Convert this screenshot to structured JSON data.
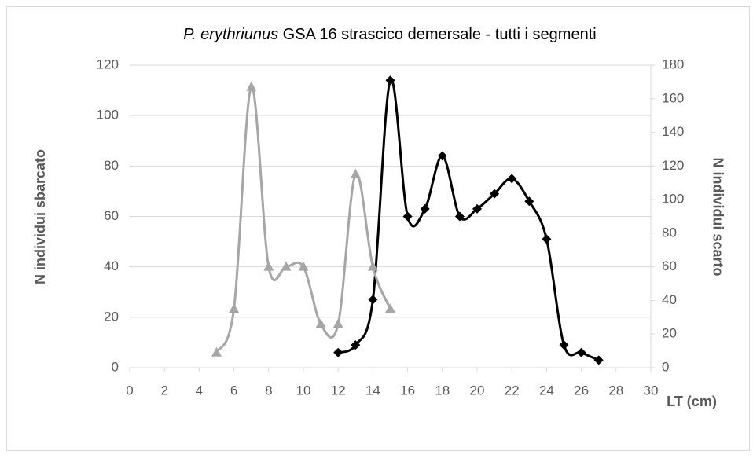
{
  "chart_data": {
    "type": "line",
    "title": {
      "species": "P. erythriunus",
      "text": "GSA 16 strascico demersale - tutti i segmenti"
    },
    "xlabel": "LT (cm)",
    "ylabel": "N individui sbarcato",
    "y2label": "N individui scarto",
    "xlim": [
      0,
      30
    ],
    "xticks": [
      0,
      2,
      4,
      6,
      8,
      10,
      12,
      14,
      16,
      18,
      20,
      22,
      24,
      26,
      28,
      30
    ],
    "ylim": [
      0,
      120
    ],
    "yticks": [
      0,
      20,
      40,
      60,
      80,
      100,
      120
    ],
    "y2lim": [
      0,
      180
    ],
    "y2ticks": [
      0,
      20,
      40,
      60,
      80,
      100,
      120,
      140,
      160,
      180
    ],
    "grid": true,
    "series": [
      {
        "color": "#000000",
        "marker": "diamond",
        "axis": "y",
        "x": [
          12,
          13,
          14,
          15,
          16,
          17,
          18,
          19,
          20,
          21,
          22,
          23,
          24,
          25,
          26,
          27
        ],
        "values": [
          6,
          9,
          27,
          114,
          60,
          63,
          84,
          60,
          63,
          69,
          75,
          66,
          51,
          9,
          6,
          3
        ]
      },
      {
        "color": "#a6a6a6",
        "marker": "triangle",
        "axis": "y2",
        "x": [
          5,
          6,
          7,
          8,
          9,
          10,
          11,
          12,
          13,
          14,
          15
        ],
        "values": [
          9,
          35,
          167,
          60,
          60,
          60,
          26,
          26,
          115,
          60,
          35
        ]
      }
    ]
  }
}
